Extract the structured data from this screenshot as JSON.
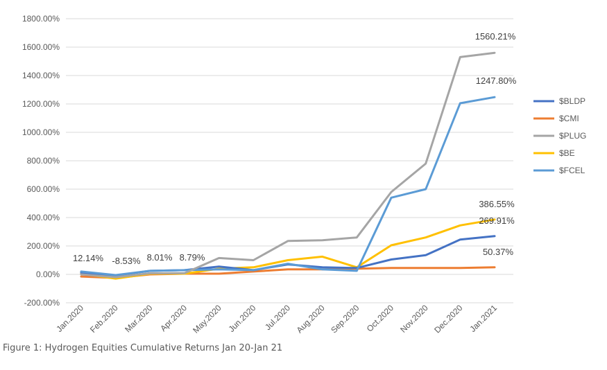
{
  "caption": "Figure 1: Hydrogen Equities Cumulative Returns Jan 20-Jan 21",
  "chart_data": {
    "type": "line",
    "title": "",
    "xlabel": "",
    "ylabel": "",
    "ylim": [
      -200,
      1800
    ],
    "yticks": [
      {
        "value": -200,
        "label": "-200.00%"
      },
      {
        "value": 0,
        "label": "0.00%"
      },
      {
        "value": 200,
        "label": "200.00%"
      },
      {
        "value": 400,
        "label": "400.00%"
      },
      {
        "value": 600,
        "label": "600.00%"
      },
      {
        "value": 800,
        "label": "800.00%"
      },
      {
        "value": 1000,
        "label": "1000.00%"
      },
      {
        "value": 1200,
        "label": "1200.00%"
      },
      {
        "value": 1400,
        "label": "1400.00%"
      },
      {
        "value": 1600,
        "label": "1600.00%"
      },
      {
        "value": 1800,
        "label": "1800.00%"
      }
    ],
    "categories": [
      "Jan.2020",
      "Feb.2020",
      "Mar.2020",
      "Apr.2020",
      "May.2020",
      "Jun.2020",
      "Jul.2020",
      "Aug.2020",
      "Sep.2020",
      "Oct.2020",
      "Nov.2020",
      "Dec.2020",
      "Jan.2021"
    ],
    "grid": true,
    "legend_position": "right",
    "series": [
      {
        "name": "$BLDP",
        "color": "#4472C4",
        "values": [
          12.14,
          -8.53,
          25,
          30,
          55,
          30,
          70,
          50,
          45,
          105,
          135,
          245,
          269.91
        ]
      },
      {
        "name": "$CMI",
        "color": "#ED7D31",
        "values": [
          -15,
          -25,
          0,
          5,
          5,
          20,
          35,
          35,
          40,
          45,
          45,
          45,
          50.37
        ]
      },
      {
        "name": "$PLUG",
        "color": "#A5A5A5",
        "values": [
          0,
          -20,
          8.01,
          8.79,
          115,
          100,
          235,
          240,
          260,
          580,
          780,
          1530,
          1560.21
        ]
      },
      {
        "name": "$BE",
        "color": "#FFC000",
        "values": [
          5,
          -30,
          5,
          5,
          40,
          50,
          100,
          125,
          50,
          205,
          260,
          345,
          386.55
        ]
      },
      {
        "name": "$FCEL",
        "color": "#5B9BD5",
        "values": [
          20,
          -5,
          25,
          30,
          35,
          30,
          75,
          35,
          25,
          540,
          600,
          1205,
          1247.8
        ]
      }
    ],
    "annotations": [
      {
        "text": "12.14%",
        "index": 0,
        "value": 12.14
      },
      {
        "text": "-8.53%",
        "index": 1,
        "value": -8.53
      },
      {
        "text": "8.01%",
        "index": 2,
        "value": 8.01
      },
      {
        "text": "8.79%",
        "index": 3,
        "value": 8.79
      },
      {
        "text": "1560.21%",
        "index": 12,
        "value": 1560.21
      },
      {
        "text": "1247.80%",
        "index": 12,
        "value": 1247.8
      },
      {
        "text": "386.55%",
        "index": 12,
        "value": 386.55
      },
      {
        "text": "269.91%",
        "index": 12,
        "value": 269.91
      },
      {
        "text": "50.37%",
        "index": 12,
        "value": 50.37
      }
    ]
  }
}
